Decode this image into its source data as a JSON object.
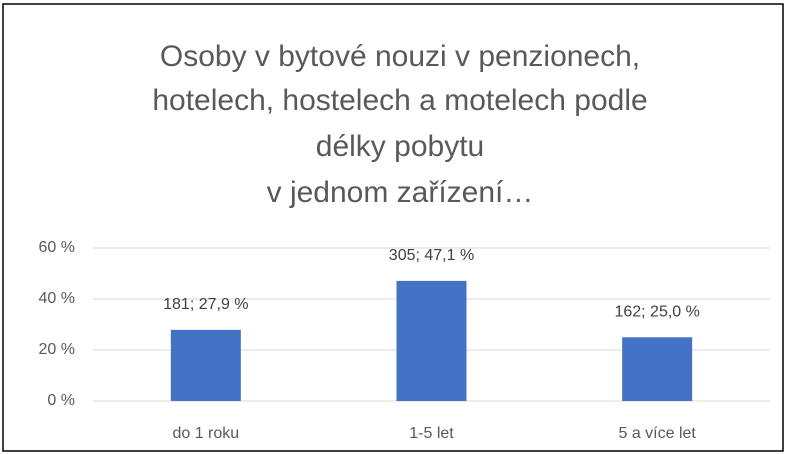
{
  "chart_data": {
    "type": "bar",
    "title": [
      "Osoby v bytové nouzi v penzionech,",
      "hotelech, hostelech a motelech podle",
      "délky pobytu",
      "v jednom zařízení…"
    ],
    "categories": [
      "do 1 roku",
      "1-5 let",
      "5 a více let"
    ],
    "values": [
      27.9,
      47.1,
      25.0
    ],
    "value_labels": [
      "181; 27,9 %",
      "305; 47,1 %",
      "162; 25,0 %"
    ],
    "color": "#4472c4",
    "ylim": [
      0,
      60
    ],
    "yticks": [
      {
        "value": 0,
        "label": "0 %"
      },
      {
        "value": 20,
        "label": "20 %"
      },
      {
        "value": 40,
        "label": "40 %"
      },
      {
        "value": 60,
        "label": "60 %"
      }
    ],
    "grid": true
  }
}
